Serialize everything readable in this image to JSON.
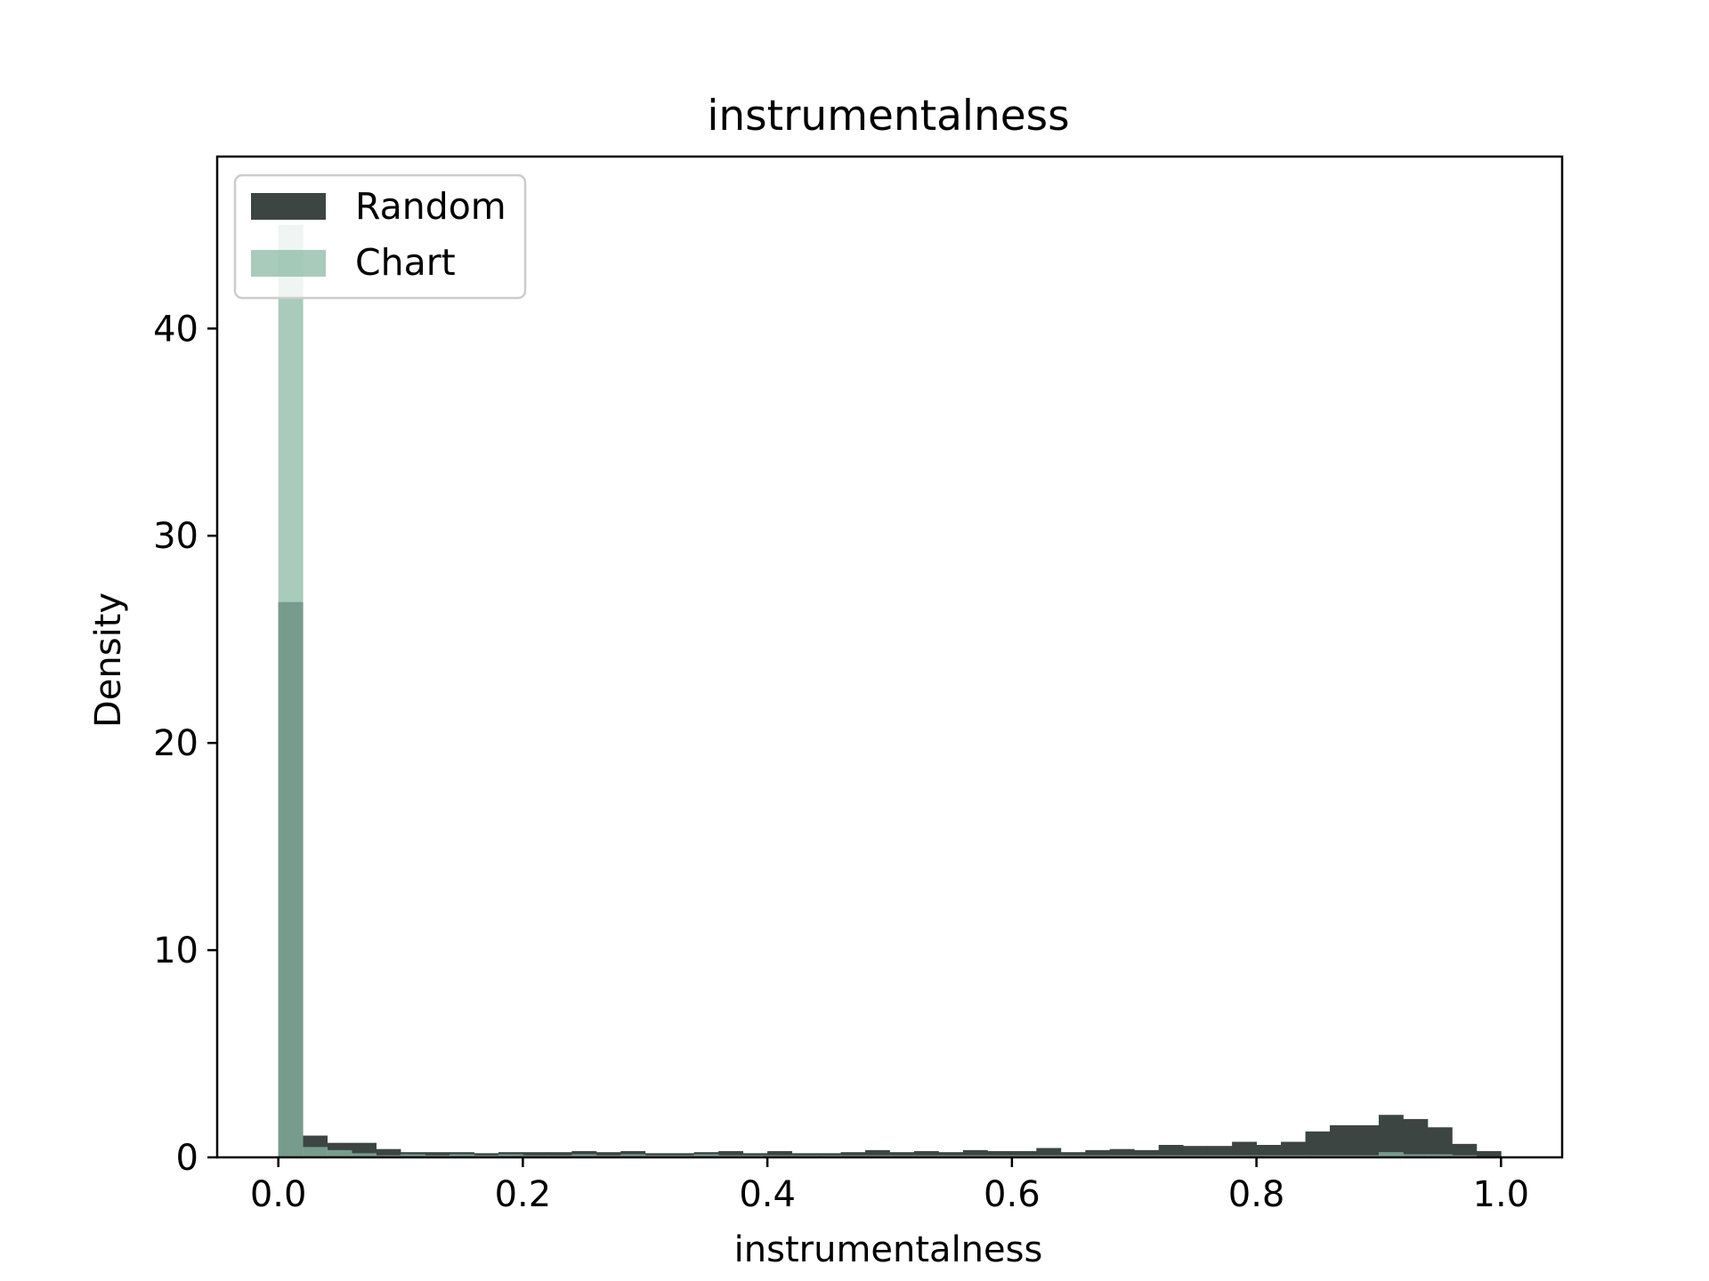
{
  "chart_data": {
    "type": "bar",
    "title": "instrumentalness",
    "xlabel": "instrumentalness",
    "ylabel": "Density",
    "xlim": [
      -0.05,
      1.05
    ],
    "ylim": [
      0,
      48.3
    ],
    "xticks": [
      0.0,
      0.2,
      0.4,
      0.6,
      0.8,
      1.0
    ],
    "xtick_labels": [
      "0.0",
      "0.2",
      "0.4",
      "0.6",
      "0.8",
      "1.0"
    ],
    "yticks": [
      0,
      10,
      20,
      30,
      40
    ],
    "ytick_labels": [
      "0",
      "10",
      "20",
      "30",
      "40"
    ],
    "bin_width": 0.02,
    "bin_starts": [
      0.0,
      0.02,
      0.04,
      0.06,
      0.08,
      0.1,
      0.12,
      0.14,
      0.16,
      0.18,
      0.2,
      0.22,
      0.24,
      0.26,
      0.28,
      0.3,
      0.32,
      0.34,
      0.36,
      0.38,
      0.4,
      0.42,
      0.44,
      0.46,
      0.48,
      0.5,
      0.52,
      0.54,
      0.56,
      0.58,
      0.6,
      0.62,
      0.64,
      0.66,
      0.68,
      0.7,
      0.72,
      0.74,
      0.76,
      0.78,
      0.8,
      0.82,
      0.84,
      0.86,
      0.88,
      0.9,
      0.92,
      0.94,
      0.96,
      0.98
    ],
    "series": [
      {
        "name": "Random",
        "color": "#3d4543",
        "values": [
          26.8,
          1.05,
          0.7,
          0.7,
          0.4,
          0.25,
          0.25,
          0.25,
          0.2,
          0.25,
          0.25,
          0.25,
          0.3,
          0.25,
          0.3,
          0.2,
          0.2,
          0.25,
          0.3,
          0.2,
          0.3,
          0.2,
          0.2,
          0.25,
          0.35,
          0.25,
          0.3,
          0.25,
          0.35,
          0.3,
          0.3,
          0.45,
          0.25,
          0.35,
          0.4,
          0.35,
          0.6,
          0.55,
          0.55,
          0.75,
          0.6,
          0.75,
          1.25,
          1.55,
          1.55,
          2.05,
          1.85,
          1.45,
          0.65,
          0.3
        ]
      },
      {
        "name": "Chart",
        "color": "#8bbaa6",
        "values": [
          45.0,
          0.5,
          0.35,
          0.2,
          0.1,
          0.15,
          0.1,
          0.15,
          0.1,
          0.15,
          0.1,
          0.1,
          0.15,
          0.1,
          0.15,
          0.1,
          0.1,
          0.15,
          0.1,
          0.1,
          0.1,
          0.1,
          0.1,
          0.1,
          0.1,
          0.1,
          0.1,
          0.1,
          0.1,
          0.1,
          0.1,
          0.1,
          0.1,
          0.1,
          0.1,
          0.1,
          0.1,
          0.1,
          0.1,
          0.1,
          0.1,
          0.1,
          0.1,
          0.1,
          0.1,
          0.25,
          0.15,
          0.15,
          0.1,
          0.05
        ]
      }
    ],
    "legend": {
      "position": "upper-left",
      "entries": [
        "Random",
        "Chart"
      ]
    },
    "grid": false
  }
}
